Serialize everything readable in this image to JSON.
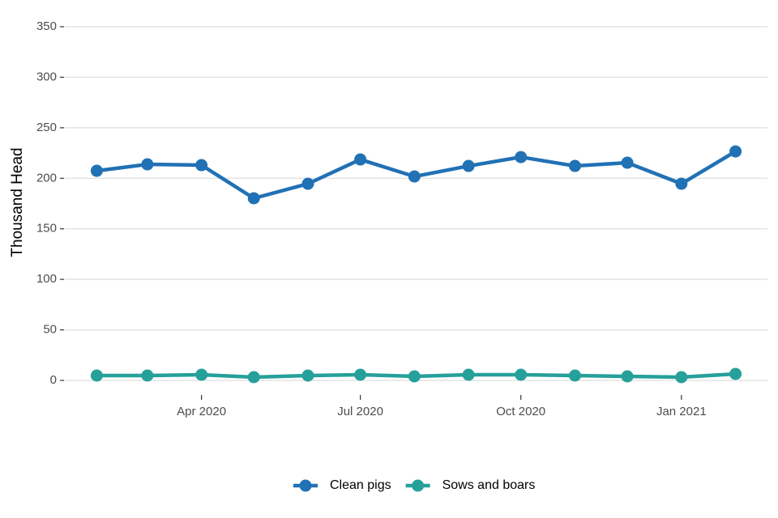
{
  "chart_data": {
    "type": "line",
    "y_label": "Thousand Head",
    "x": [
      "2020-02",
      "2020-03",
      "2020-04",
      "2020-05",
      "2020-06",
      "2020-07",
      "2020-08",
      "2020-09",
      "2020-10",
      "2020-11",
      "2020-12",
      "2021-01",
      "2021-02"
    ],
    "series": [
      {
        "name": "Clean pigs",
        "color": "#2171b5",
        "values": [
          207.4,
          213.8,
          213,
          180.2,
          194.6,
          218.6,
          201.8,
          212.2,
          221,
          212.2,
          215.4,
          194.6,
          226.6
        ]
      },
      {
        "name": "Sows and boars",
        "color": "#26a09a",
        "values": [
          4.8,
          4.8,
          5.6,
          3.2,
          4.8,
          5.6,
          4,
          5.6,
          5.6,
          4.8,
          4,
          3.2,
          6.4
        ]
      }
    ],
    "ylim": [
      0,
      350
    ],
    "yticks": [
      0,
      50,
      100,
      150,
      200,
      250,
      300,
      350
    ],
    "xticks": [
      {
        "value": "2020-04",
        "label": "Apr 2020"
      },
      {
        "value": "2020-07",
        "label": "Jul 2020"
      },
      {
        "value": "2020-10",
        "label": "Oct 2020"
      },
      {
        "value": "2021-01",
        "label": "Jan 2021"
      }
    ],
    "grid": true,
    "legend": "bottom"
  }
}
